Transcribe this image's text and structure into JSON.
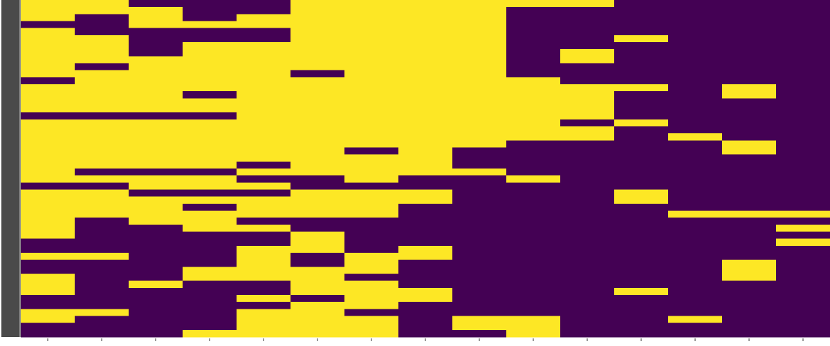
{
  "chart_data": {
    "type": "heatmap",
    "colors": [
      "#fde725",
      "#440154"
    ],
    "z": [
      [
        0,
        0,
        0,
        1,
        0,
        0,
        0,
        0,
        0,
        0,
        0,
        1,
        0,
        0,
        0,
        0,
        1,
        0,
        0,
        0,
        0,
        0,
        0,
        0,
        0,
        0,
        1,
        0,
        0,
        0,
        0,
        0,
        0,
        0,
        1,
        1,
        0,
        1,
        1,
        0,
        0,
        0,
        1,
        1,
        0,
        0,
        1,
        1
      ],
      [
        0,
        0,
        1,
        1,
        1,
        0,
        0,
        0,
        0,
        1,
        0,
        0,
        0,
        0,
        0,
        0,
        1,
        0,
        0,
        0,
        0,
        0,
        0,
        0,
        1,
        0,
        1,
        0,
        0,
        0,
        0,
        1,
        1,
        1,
        1,
        1,
        0,
        1,
        1,
        1,
        1,
        1,
        1,
        1,
        0,
        1,
        1,
        1
      ],
      [
        1,
        0,
        0,
        0,
        1,
        1,
        1,
        1,
        0,
        0,
        0,
        0,
        0,
        0,
        0,
        0,
        1,
        0,
        0,
        0,
        0,
        0,
        0,
        0,
        1,
        0,
        0,
        1,
        0,
        0,
        0,
        0,
        1,
        1,
        1,
        1,
        1,
        1,
        1,
        1,
        0,
        1,
        1,
        1,
        1,
        1,
        1,
        1
      ],
      [
        1,
        1,
        1,
        0,
        1,
        1,
        0,
        0,
        0,
        0,
        0,
        0,
        0,
        1,
        0,
        0,
        1,
        0,
        0,
        0,
        0,
        0,
        0,
        0,
        1,
        0,
        0,
        1,
        0,
        1,
        0,
        0,
        0,
        1,
        1,
        1,
        1,
        1,
        0,
        0,
        1,
        1,
        1,
        1,
        1,
        1,
        1,
        0
      ],
      [
        1,
        1,
        0,
        0,
        1,
        1,
        0,
        0,
        0,
        0,
        0,
        0,
        0,
        0,
        0,
        0,
        0,
        0,
        0,
        0,
        0,
        0,
        0,
        1,
        0,
        1,
        0,
        1,
        0,
        0,
        0,
        1,
        0,
        1,
        1,
        0,
        0,
        0,
        0,
        0,
        1,
        1,
        0,
        1,
        0,
        0,
        0,
        0
      ],
      [
        0,
        0,
        0,
        0,
        0,
        0,
        0,
        0,
        0,
        0,
        1,
        0,
        0,
        0,
        0,
        0,
        0,
        0,
        0,
        0,
        0,
        0,
        0,
        0,
        0,
        1,
        1,
        0,
        0,
        0,
        0,
        1,
        1,
        0,
        0,
        0,
        1,
        1,
        0,
        0,
        0,
        0,
        1,
        0,
        0,
        0,
        0,
        0
      ],
      [
        0,
        0,
        0,
        0,
        0,
        0,
        0,
        0,
        0,
        0,
        0,
        0,
        0,
        0,
        0,
        0,
        0,
        0,
        0,
        0,
        0,
        1,
        0,
        0,
        0,
        0,
        1,
        0,
        0,
        0,
        0,
        1,
        1,
        1,
        1,
        1,
        0,
        0,
        0,
        1,
        0,
        0,
        0,
        0,
        1,
        0,
        0,
        0
      ],
      [
        0,
        0,
        0,
        0,
        0,
        0,
        0,
        0,
        0,
        0,
        0,
        0,
        0,
        0,
        0,
        0,
        0,
        0,
        0,
        0,
        0,
        0,
        0,
        0,
        0,
        1,
        1,
        0,
        0,
        1,
        1,
        1,
        1,
        1,
        1,
        0,
        0,
        1,
        1,
        1,
        1,
        0,
        0,
        1,
        1,
        1,
        1,
        1
      ],
      [
        0,
        0,
        0,
        0,
        0,
        0,
        0,
        0,
        0,
        0,
        0,
        0,
        0,
        0,
        0,
        0,
        0,
        0,
        0,
        0,
        0,
        1,
        1,
        1,
        0,
        1,
        1,
        1,
        1,
        1,
        1,
        1,
        1,
        1,
        1,
        1,
        1,
        1,
        1,
        1,
        1,
        1,
        1,
        1,
        1,
        0,
        0,
        1
      ],
      [
        0,
        1,
        1,
        1,
        1,
        1,
        1,
        1,
        1,
        1,
        1,
        0,
        0,
        0,
        0,
        0,
        0,
        0,
        0,
        0,
        1,
        1,
        1,
        1,
        1,
        0,
        1,
        1,
        1,
        1,
        1,
        1,
        1,
        1,
        1,
        1,
        1,
        1,
        1,
        1,
        1,
        1,
        1,
        1,
        1,
        0,
        0,
        0
      ],
      [
        0,
        1,
        1,
        1,
        1,
        1,
        1,
        0,
        0,
        1,
        1,
        1,
        0,
        0,
        0,
        0,
        0,
        1,
        0,
        0,
        1,
        1,
        1,
        1,
        1,
        1,
        1,
        1,
        1,
        1,
        1,
        1,
        1,
        1,
        1,
        1,
        1,
        1,
        1,
        1,
        1,
        1,
        1,
        1,
        1,
        1,
        1,
        1
      ],
      [
        1,
        1,
        1,
        1,
        1,
        0,
        1,
        1,
        1,
        1,
        1,
        1,
        0,
        1,
        1,
        1,
        1,
        0,
        1,
        1,
        1,
        1,
        1,
        1,
        1,
        1,
        1,
        0,
        0,
        1,
        1,
        1,
        1,
        1,
        1,
        1,
        1,
        1,
        1,
        1,
        1,
        0,
        1,
        1,
        1,
        1,
        1,
        1
      ],
      [
        1,
        1,
        1,
        1,
        1,
        1,
        1,
        1,
        1,
        1,
        1,
        1,
        1,
        1,
        1,
        1,
        1,
        1,
        1,
        0,
        1,
        1,
        1,
        1,
        1,
        1,
        1,
        1,
        1,
        1,
        0,
        1,
        1,
        1,
        1,
        1,
        1,
        1,
        1,
        1,
        1,
        1,
        1,
        1,
        1,
        0,
        1,
        1
      ],
      [
        1,
        1,
        1,
        1,
        1,
        1,
        1,
        1,
        1,
        1,
        1,
        1,
        0,
        0,
        1,
        1,
        1,
        1,
        1,
        1,
        0,
        0,
        1,
        1,
        1,
        1,
        1,
        1,
        1,
        1,
        0,
        1,
        1,
        1,
        1,
        1,
        1,
        0,
        0,
        0,
        1,
        1,
        1,
        1,
        1,
        1,
        1,
        1
      ],
      [
        1,
        1,
        1,
        1,
        1,
        1,
        1,
        1,
        1,
        1,
        1,
        1,
        1,
        1,
        1,
        1,
        1,
        1,
        1,
        1,
        1,
        1,
        1,
        1,
        1,
        1,
        1,
        1,
        1,
        1,
        0,
        1,
        0,
        1,
        0,
        1,
        1,
        1,
        1,
        1,
        1,
        1,
        1,
        1,
        1,
        1,
        1,
        1
      ]
    ]
  }
}
